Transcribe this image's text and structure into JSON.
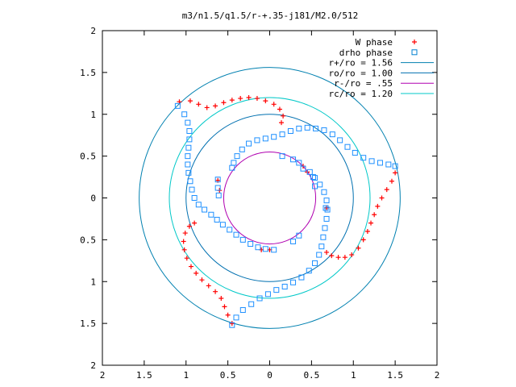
{
  "chart_data": {
    "type": "scatter",
    "title": "m3/n1.5/q1.5/r-+.35-j181/M2.0/512",
    "xlabel": "",
    "ylabel": "",
    "xlim": [
      -2,
      2
    ],
    "ylim": [
      -2,
      2
    ],
    "x_tick_labels": [
      "2",
      "1.5",
      "1",
      "0.5",
      "0",
      "0.5",
      "1",
      "1.5",
      "2"
    ],
    "y_tick_labels": [
      "2",
      "1.5",
      "1",
      "0.5",
      "0",
      "0.5",
      "1",
      "1.5",
      "2"
    ],
    "grid": false,
    "legend_position": "top-right",
    "legend": [
      {
        "label": "W phase",
        "marker": "+",
        "color": "#ff0000"
      },
      {
        "label": "drho phase",
        "marker": "square",
        "color": "#0080d0"
      },
      {
        "label": "r+/ro = 1.56",
        "line": true,
        "color": "#0080b0"
      },
      {
        "label": "ro/ro = 1.00",
        "line": true,
        "color": "#0070b0"
      },
      {
        "label": "r-/ro =  .55",
        "line": true,
        "color": "#b000b0"
      },
      {
        "label": "rc/ro = 1.20",
        "line": true,
        "color": "#00c8c8"
      }
    ],
    "circles": [
      {
        "name": "r+/ro",
        "radius": 1.56,
        "color": "#0080b0"
      },
      {
        "name": "ro/ro",
        "radius": 1.0,
        "color": "#0070b0"
      },
      {
        "name": "r-/ro",
        "radius": 0.55,
        "color": "#b000b0"
      },
      {
        "name": "rc/ro",
        "radius": 1.2,
        "color": "#00c8c8"
      }
    ],
    "series": [
      {
        "name": "W phase",
        "color": "#ff0000",
        "marker": "+",
        "points": [
          [
            -1.08,
            1.15
          ],
          [
            -0.95,
            1.16
          ],
          [
            -0.85,
            1.12
          ],
          [
            -0.75,
            1.08
          ],
          [
            -0.65,
            1.1
          ],
          [
            -0.55,
            1.14
          ],
          [
            -0.45,
            1.17
          ],
          [
            -0.35,
            1.19
          ],
          [
            -0.25,
            1.2
          ],
          [
            -0.15,
            1.19
          ],
          [
            -0.05,
            1.16
          ],
          [
            0.05,
            1.12
          ],
          [
            0.12,
            1.06
          ],
          [
            0.16,
            0.98
          ],
          [
            0.14,
            0.9
          ],
          [
            1.5,
            0.3
          ],
          [
            1.46,
            0.2
          ],
          [
            1.4,
            0.1
          ],
          [
            1.34,
            0.0
          ],
          [
            1.29,
            -0.1
          ],
          [
            1.25,
            -0.2
          ],
          [
            1.21,
            -0.3
          ],
          [
            1.17,
            -0.4
          ],
          [
            1.12,
            -0.5
          ],
          [
            1.06,
            -0.6
          ],
          [
            0.98,
            -0.68
          ],
          [
            0.9,
            -0.71
          ],
          [
            0.82,
            -0.71
          ],
          [
            0.74,
            -0.69
          ],
          [
            0.68,
            -0.65
          ],
          [
            -0.45,
            -1.5
          ],
          [
            -0.5,
            -1.4
          ],
          [
            -0.54,
            -1.3
          ],
          [
            -0.58,
            -1.2
          ],
          [
            -0.65,
            -1.12
          ],
          [
            -0.73,
            -1.05
          ],
          [
            -0.81,
            -0.98
          ],
          [
            -0.88,
            -0.9
          ],
          [
            -0.94,
            -0.82
          ],
          [
            -0.99,
            -0.72
          ],
          [
            -1.02,
            -0.62
          ],
          [
            -1.03,
            -0.52
          ],
          [
            -1.01,
            -0.42
          ],
          [
            -0.96,
            -0.34
          ],
          [
            -0.9,
            -0.3
          ],
          [
            -0.62,
            0.21
          ],
          [
            -0.6,
            0.09
          ],
          [
            0.4,
            0.38
          ],
          [
            0.45,
            0.31
          ],
          [
            0.68,
            -0.12
          ],
          [
            0.0,
            -0.62
          ],
          [
            -0.1,
            -0.62
          ]
        ]
      },
      {
        "name": "drho phase",
        "color": "#1e90ff",
        "marker": "square",
        "points": [
          [
            -1.1,
            1.1
          ],
          [
            -1.02,
            1.0
          ],
          [
            -0.98,
            0.9
          ],
          [
            -0.96,
            0.8
          ],
          [
            -0.96,
            0.7
          ],
          [
            -0.97,
            0.6
          ],
          [
            -0.98,
            0.5
          ],
          [
            -0.98,
            0.4
          ],
          [
            -0.97,
            0.3
          ],
          [
            -0.95,
            0.2
          ],
          [
            -0.93,
            0.1
          ],
          [
            -0.9,
            0.0
          ],
          [
            -0.85,
            -0.08
          ],
          [
            -0.78,
            -0.14
          ],
          [
            -0.7,
            -0.2
          ],
          [
            -0.63,
            -0.26
          ],
          [
            -0.56,
            -0.32
          ],
          [
            -0.48,
            -0.38
          ],
          [
            -0.4,
            -0.44
          ],
          [
            -0.32,
            -0.5
          ],
          [
            -0.23,
            -0.55
          ],
          [
            -0.14,
            -0.59
          ],
          [
            -0.05,
            -0.61
          ],
          [
            1.5,
            0.38
          ],
          [
            1.42,
            0.4
          ],
          [
            1.32,
            0.42
          ],
          [
            1.22,
            0.44
          ],
          [
            1.12,
            0.48
          ],
          [
            1.02,
            0.54
          ],
          [
            0.93,
            0.61
          ],
          [
            0.84,
            0.69
          ],
          [
            0.75,
            0.76
          ],
          [
            0.65,
            0.81
          ],
          [
            0.55,
            0.83
          ],
          [
            0.45,
            0.84
          ],
          [
            0.35,
            0.83
          ],
          [
            0.25,
            0.8
          ],
          [
            0.15,
            0.76
          ],
          [
            0.05,
            0.73
          ],
          [
            -0.05,
            0.71
          ],
          [
            -0.15,
            0.69
          ],
          [
            -0.25,
            0.65
          ],
          [
            -0.33,
            0.58
          ],
          [
            -0.39,
            0.5
          ],
          [
            -0.43,
            0.42
          ],
          [
            -0.45,
            0.36
          ],
          [
            -0.45,
            -1.52
          ],
          [
            -0.4,
            -1.43
          ],
          [
            -0.32,
            -1.34
          ],
          [
            -0.22,
            -1.27
          ],
          [
            -0.12,
            -1.2
          ],
          [
            -0.02,
            -1.15
          ],
          [
            0.08,
            -1.1
          ],
          [
            0.18,
            -1.06
          ],
          [
            0.28,
            -1.01
          ],
          [
            0.38,
            -0.95
          ],
          [
            0.47,
            -0.87
          ],
          [
            0.54,
            -0.78
          ],
          [
            0.59,
            -0.68
          ],
          [
            0.62,
            -0.58
          ],
          [
            0.64,
            -0.47
          ],
          [
            0.66,
            -0.36
          ],
          [
            0.68,
            -0.25
          ],
          [
            0.69,
            -0.14
          ],
          [
            0.68,
            -0.03
          ],
          [
            0.65,
            0.07
          ],
          [
            0.6,
            0.16
          ],
          [
            0.54,
            0.24
          ],
          [
            0.48,
            0.31
          ],
          [
            0.15,
            0.5
          ],
          [
            0.28,
            0.46
          ],
          [
            0.35,
            0.42
          ],
          [
            0.4,
            0.35
          ],
          [
            0.52,
            0.25
          ],
          [
            0.54,
            0.14
          ],
          [
            0.67,
            -0.12
          ],
          [
            0.35,
            -0.45
          ],
          [
            0.28,
            -0.52
          ],
          [
            0.05,
            -0.62
          ],
          [
            -0.62,
            0.22
          ],
          [
            -0.62,
            0.12
          ],
          [
            -0.61,
            0.03
          ]
        ]
      }
    ]
  }
}
